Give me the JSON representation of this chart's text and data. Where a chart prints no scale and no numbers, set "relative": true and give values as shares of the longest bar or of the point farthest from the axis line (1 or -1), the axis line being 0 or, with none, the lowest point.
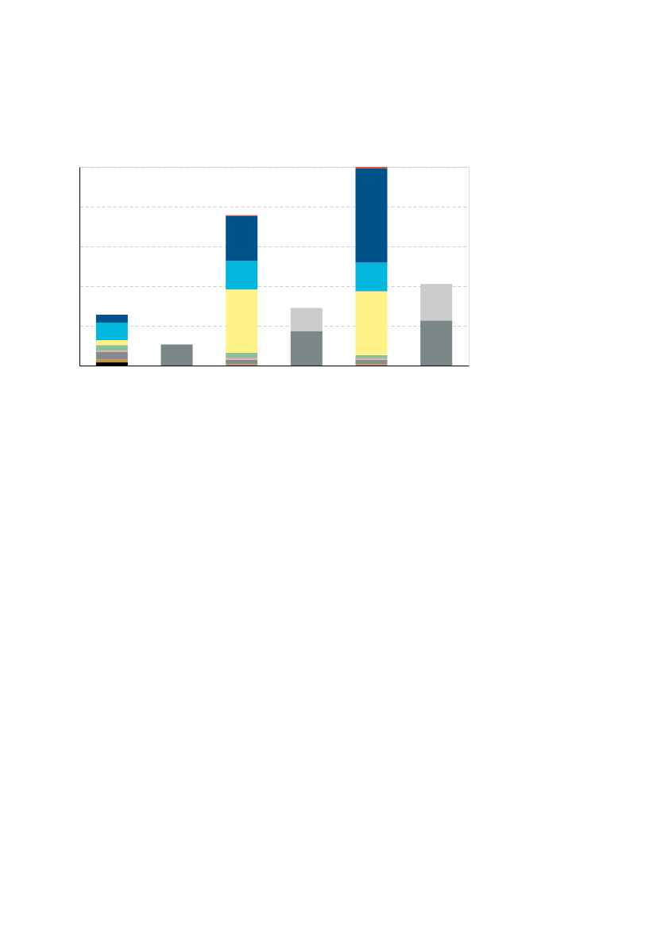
{
  "chart_data": {
    "type": "bar",
    "stacked": true,
    "relative": true,
    "grid": "y",
    "categories": [
      null,
      null,
      null,
      null,
      null,
      null
    ],
    "series": [
      {
        "color": "#000000",
        "values": [
          0.017,
          0,
          0,
          0,
          0,
          0
        ]
      },
      {
        "color": "#cc8a2e",
        "values": [
          0.013,
          0,
          0.006,
          0,
          0.006,
          0
        ]
      },
      {
        "color": "#858b90",
        "values": [
          0.038,
          0,
          0.023,
          0,
          0.023,
          0
        ]
      },
      {
        "color": "#e8a9a9",
        "values": [
          0.007,
          0,
          0.008,
          0,
          0.007,
          0
        ]
      },
      {
        "color": "#8cc096",
        "values": [
          0.028,
          0,
          0.028,
          0,
          0.016,
          0
        ]
      },
      {
        "color": "#fff387",
        "values": [
          0.025,
          0,
          0.318,
          0,
          0.322,
          0
        ]
      },
      {
        "color": "#00b8de",
        "values": [
          0.088,
          0,
          0.143,
          0,
          0.144,
          0
        ]
      },
      {
        "color": "#00538a",
        "values": [
          0.04,
          0,
          0.227,
          0,
          0.475,
          0
        ]
      },
      {
        "color": "#e8462a",
        "values": [
          0,
          0,
          0.004,
          0,
          0.007,
          0
        ]
      },
      {
        "color": "#7b8688",
        "values": [
          0,
          0.106,
          0,
          0.174,
          0,
          0.227
        ]
      },
      {
        "color": "#cccccc",
        "values": [
          0,
          0,
          0,
          0.116,
          0,
          0.184
        ]
      }
    ]
  }
}
